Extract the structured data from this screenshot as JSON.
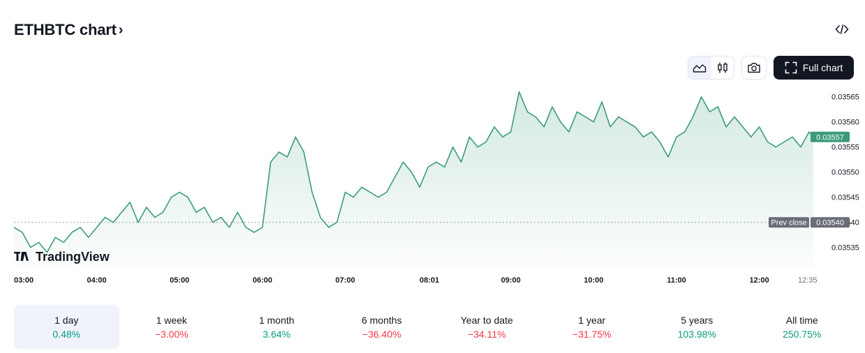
{
  "header": {
    "title": "ETHBTC chart",
    "title_chevron": "›"
  },
  "toolbar": {
    "area_icon": "area-chart-icon",
    "candles_icon": "candlestick-icon",
    "camera_icon": "camera-icon",
    "full_chart_label": "Full chart",
    "embed_icon": "code-embed-icon"
  },
  "branding": {
    "logo_text": "TradingView"
  },
  "colors": {
    "line": "#3b9b79",
    "fill": "#cfe9df",
    "prev_close": "#6a6d78",
    "last": "#3b9b79",
    "positive": "#089981",
    "negative": "#f23645"
  },
  "chart_data": {
    "type": "area",
    "symbol": "ETHBTC",
    "y_ticks": [
      0.03535,
      0.0354,
      0.03545,
      0.0355,
      0.03555,
      0.0356,
      0.03565
    ],
    "y_tick_labels": [
      "0.03535",
      "0.03540",
      "0.03545",
      "0.03550",
      "0.03555",
      "0.03560",
      "0.03565"
    ],
    "ylim": [
      0.035312,
      0.035676
    ],
    "x_ticks": [
      "03:00",
      "04:00",
      "05:00",
      "06:00",
      "07:00",
      "08:01",
      "09:00",
      "10:00",
      "11:00",
      "12:00",
      "12:35"
    ],
    "x_tick_hours": [
      3.0,
      4.0,
      5.0,
      6.0,
      7.0,
      8.0167,
      9.0,
      10.0,
      11.0,
      12.0,
      12.583
    ],
    "xlim_hours": [
      3.0,
      12.72
    ],
    "prev_close": {
      "label": "Prev close",
      "value": 0.0354,
      "value_label": "0.03540"
    },
    "last": {
      "value": 0.03557,
      "value_label": "0.03557"
    },
    "x": [
      3.0,
      3.1,
      3.2,
      3.3,
      3.4,
      3.5,
      3.6,
      3.7,
      3.8,
      3.9,
      4.0,
      4.1,
      4.2,
      4.3,
      4.4,
      4.5,
      4.6,
      4.7,
      4.8,
      4.9,
      5.0,
      5.1,
      5.2,
      5.3,
      5.4,
      5.5,
      5.6,
      5.7,
      5.8,
      5.9,
      6.0,
      6.1,
      6.2,
      6.3,
      6.4,
      6.5,
      6.6,
      6.7,
      6.8,
      6.9,
      7.0,
      7.1,
      7.2,
      7.3,
      7.4,
      7.5,
      7.6,
      7.7,
      7.8,
      7.9,
      8.0,
      8.1,
      8.2,
      8.3,
      8.4,
      8.5,
      8.6,
      8.7,
      8.8,
      8.9,
      9.0,
      9.1,
      9.2,
      9.3,
      9.4,
      9.5,
      9.6,
      9.7,
      9.8,
      9.9,
      10.0,
      10.1,
      10.2,
      10.3,
      10.4,
      10.5,
      10.6,
      10.7,
      10.8,
      10.9,
      11.0,
      11.1,
      11.2,
      11.3,
      11.4,
      11.5,
      11.6,
      11.7,
      11.8,
      11.9,
      12.0,
      12.1,
      12.2,
      12.3,
      12.4,
      12.5,
      12.6,
      12.65
    ],
    "values": [
      0.03539,
      0.03538,
      0.03535,
      0.03536,
      0.03534,
      0.03537,
      0.03536,
      0.03538,
      0.03539,
      0.03537,
      0.03539,
      0.03541,
      0.0354,
      0.03542,
      0.03544,
      0.0354,
      0.03543,
      0.03541,
      0.03542,
      0.03545,
      0.03546,
      0.03545,
      0.03542,
      0.03543,
      0.0354,
      0.03541,
      0.03539,
      0.03542,
      0.03539,
      0.03538,
      0.03539,
      0.03552,
      0.03554,
      0.03553,
      0.03557,
      0.03554,
      0.03546,
      0.03541,
      0.03539,
      0.0354,
      0.03546,
      0.03545,
      0.03547,
      0.03546,
      0.03545,
      0.03546,
      0.03549,
      0.03552,
      0.0355,
      0.03547,
      0.03551,
      0.03552,
      0.03551,
      0.03555,
      0.03552,
      0.03557,
      0.03555,
      0.03556,
      0.03559,
      0.03557,
      0.03558,
      0.03566,
      0.03562,
      0.03561,
      0.03559,
      0.03563,
      0.0356,
      0.03558,
      0.03562,
      0.03561,
      0.0356,
      0.03564,
      0.03559,
      0.03561,
      0.0356,
      0.03559,
      0.03557,
      0.03558,
      0.03556,
      0.03553,
      0.03557,
      0.03558,
      0.03561,
      0.03565,
      0.03562,
      0.03563,
      0.03559,
      0.03561,
      0.03559,
      0.03557,
      0.03559,
      0.03556,
      0.03555,
      0.03556,
      0.03557,
      0.03555,
      0.03558,
      0.03557
    ]
  },
  "periods": [
    {
      "label": "1 day",
      "change": "0.48%",
      "direction": "pos",
      "active": true
    },
    {
      "label": "1 week",
      "change": "−3.00%",
      "direction": "neg",
      "active": false
    },
    {
      "label": "1 month",
      "change": "3.64%",
      "direction": "pos",
      "active": false
    },
    {
      "label": "6 months",
      "change": "−36.40%",
      "direction": "neg",
      "active": false
    },
    {
      "label": "Year to date",
      "change": "−34.11%",
      "direction": "neg",
      "active": false
    },
    {
      "label": "1 year",
      "change": "−31.75%",
      "direction": "neg",
      "active": false
    },
    {
      "label": "5 years",
      "change": "103.98%",
      "direction": "pos",
      "active": false
    },
    {
      "label": "All time",
      "change": "250.75%",
      "direction": "pos",
      "active": false
    }
  ]
}
